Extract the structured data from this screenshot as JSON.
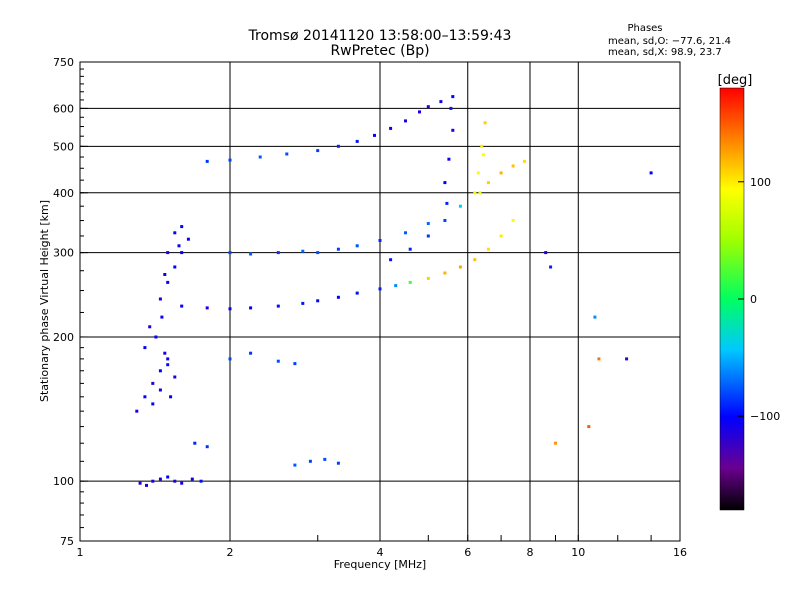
{
  "chart_data": {
    "type": "scatter",
    "title_line1": "Tromsø 20141120 13:58:00–13:59:43",
    "title_line2": "RwPretec (Bp)",
    "stats": {
      "header": "Phases",
      "line_o": "mean, sd,O: −77.6, 21.4",
      "line_x": "mean, sd,X:  98.9, 23.7"
    },
    "xlabel": "Frequency [MHz]",
    "ylabel": "Stationary phase Virtual Height [km]",
    "xscale": "log",
    "yscale": "log",
    "xlim": [
      1,
      16
    ],
    "ylim": [
      75,
      750
    ],
    "xticks": [
      1,
      2,
      4,
      6,
      8,
      10,
      16
    ],
    "yticks": [
      75,
      100,
      200,
      300,
      400,
      500,
      600,
      750
    ],
    "grid": true,
    "colorbar": {
      "label": "[deg]",
      "range": [
        -180,
        180
      ],
      "ticks": [
        100,
        0,
        -100
      ]
    },
    "series": [
      {
        "x": [
          1.32,
          1.36,
          1.4,
          1.45,
          1.5,
          1.55,
          1.6,
          1.68,
          1.75
        ],
        "y": [
          99,
          98,
          100,
          101,
          102,
          100,
          99,
          101,
          100
        ],
        "phase": [
          -115,
          -110,
          -108,
          -105,
          -100,
          -112,
          -108,
          -104,
          -96
        ]
      },
      {
        "x": [
          1.3,
          1.35,
          1.4,
          1.45,
          1.5,
          1.55,
          1.4,
          1.45,
          1.5,
          1.35,
          1.42,
          1.48,
          1.52,
          1.38,
          1.46
        ],
        "y": [
          140,
          150,
          160,
          170,
          180,
          165,
          145,
          155,
          175,
          190,
          200,
          185,
          150,
          210,
          220
        ],
        "phase": [
          -110,
          -105,
          -115,
          -100,
          -108,
          -112,
          -104,
          -110,
          -98,
          -102,
          -106,
          -108,
          -100,
          -112,
          -104
        ]
      },
      {
        "x": [
          1.45,
          1.5,
          1.55,
          1.6,
          1.65,
          1.5,
          1.55,
          1.6,
          1.48,
          1.58
        ],
        "y": [
          240,
          260,
          280,
          300,
          320,
          300,
          330,
          340,
          270,
          310
        ],
        "phase": [
          -108,
          -104,
          -100,
          -102,
          -106,
          -110,
          -98,
          -100,
          -104,
          -106
        ]
      },
      {
        "x": [
          1.6,
          1.8,
          2.0,
          2.2,
          2.5,
          2.8,
          3.0,
          3.3,
          3.6,
          4.0,
          4.3,
          4.6,
          5.0,
          5.4,
          5.8,
          6.2,
          6.6,
          7.0,
          7.4
        ],
        "y": [
          232,
          230,
          229,
          230,
          232,
          235,
          238,
          242,
          247,
          252,
          256,
          260,
          265,
          272,
          280,
          290,
          305,
          325,
          350
        ],
        "phase": [
          -105,
          -108,
          -104,
          -100,
          -96,
          -94,
          -98,
          -102,
          -96,
          -92,
          -60,
          20,
          110,
          120,
          125,
          115,
          105,
          100,
          95
        ]
      },
      {
        "x": [
          2.0,
          2.2,
          2.5,
          2.8,
          3.0,
          3.3,
          3.6,
          4.0,
          4.5,
          5.0
        ],
        "y": [
          300,
          298,
          300,
          302,
          300,
          305,
          310,
          318,
          330,
          345
        ],
        "phase": [
          -80,
          -75,
          -85,
          -70,
          -78,
          -82,
          -76,
          -88,
          -74,
          -70
        ]
      },
      {
        "x": [
          4.2,
          4.6,
          5.0,
          5.4,
          5.8,
          6.2,
          6.6,
          7.0,
          7.4,
          7.8
        ],
        "y": [
          290,
          305,
          325,
          350,
          375,
          400,
          420,
          440,
          455,
          465
        ],
        "phase": [
          -95,
          -90,
          -85,
          -80,
          -40,
          90,
          110,
          120,
          115,
          105
        ]
      },
      {
        "x": [
          1.8,
          2.0,
          2.3,
          2.6,
          3.0,
          3.3,
          3.6,
          3.9,
          4.2,
          4.5,
          4.8,
          5.0,
          5.3,
          5.6
        ],
        "y": [
          465,
          468,
          475,
          482,
          490,
          500,
          512,
          527,
          545,
          565,
          590,
          605,
          620,
          635
        ],
        "phase": [
          -85,
          -80,
          -75,
          -78,
          -82,
          -90,
          -95,
          -100,
          -105,
          -108,
          -110,
          -112,
          -106,
          -100
        ]
      },
      {
        "x": [
          5.4,
          5.5,
          5.6,
          5.55,
          5.45,
          6.3,
          6.4,
          6.5,
          6.45,
          6.35
        ],
        "y": [
          420,
          470,
          540,
          600,
          380,
          440,
          500,
          560,
          480,
          400
        ],
        "phase": [
          -100,
          -105,
          -110,
          -95,
          -90,
          90,
          100,
          110,
          95,
          85
        ]
      },
      {
        "x": [
          2.0,
          2.2,
          2.5,
          2.7,
          1.7,
          1.8
        ],
        "y": [
          180,
          185,
          178,
          176,
          120,
          118
        ],
        "phase": [
          -80,
          -85,
          -78,
          -82,
          -90,
          -85
        ]
      },
      {
        "x": [
          2.7,
          2.9,
          3.1,
          3.3
        ],
        "y": [
          108,
          110,
          111,
          109
        ],
        "phase": [
          -75,
          -80,
          -78,
          -82
        ]
      },
      {
        "x": [
          8.6,
          8.8,
          9.0,
          10.5,
          10.8,
          11.0,
          12.5,
          14.0
        ],
        "y": [
          300,
          280,
          120,
          130,
          220,
          180,
          180,
          440
        ],
        "phase": [
          -110,
          -90,
          130,
          150,
          -60,
          140,
          -120,
          -100
        ]
      }
    ]
  }
}
